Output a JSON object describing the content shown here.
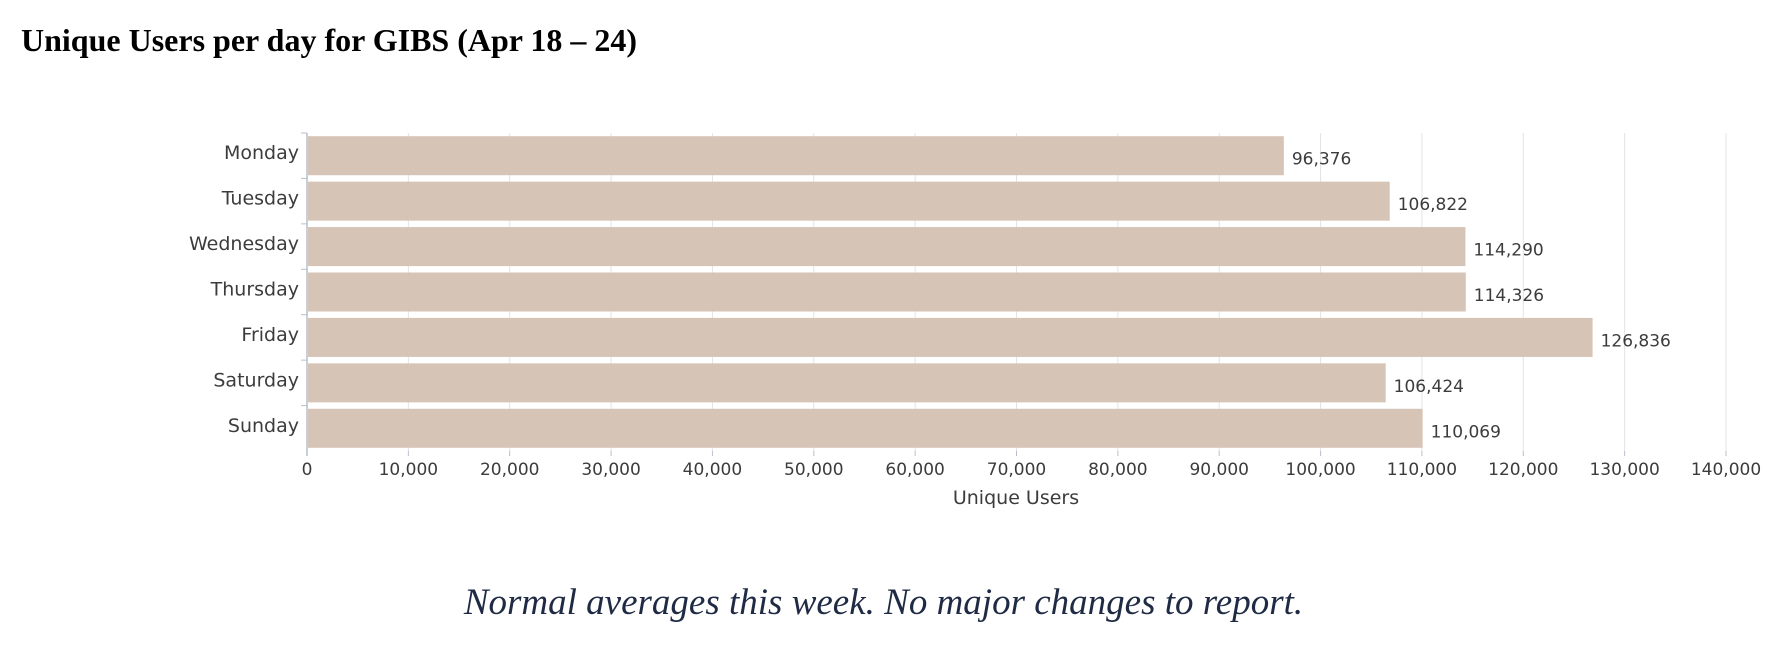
{
  "page": {
    "title": "Unique Users per day for GIBS (Apr 18 – 24)",
    "commentary": "Normal averages this week.  No major changes to report."
  },
  "chart_data": {
    "type": "bar",
    "orientation": "horizontal",
    "title": "",
    "categories": [
      "Monday",
      "Tuesday",
      "Wednesday",
      "Thursday",
      "Friday",
      "Saturday",
      "Sunday"
    ],
    "values": [
      96376,
      106822,
      114290,
      114326,
      126836,
      106424,
      110069
    ],
    "value_labels": [
      "96,376",
      "106,822",
      "114,290",
      "114,326",
      "126,836",
      "106,424",
      "110,069"
    ],
    "xlabel": "Unique Users",
    "ylabel": "",
    "xlim": [
      0,
      140000
    ],
    "x_ticks": [
      0,
      10000,
      20000,
      30000,
      40000,
      50000,
      60000,
      70000,
      80000,
      90000,
      100000,
      110000,
      120000,
      130000,
      140000
    ],
    "x_tick_labels": [
      "0",
      "10,000",
      "20,000",
      "30,000",
      "40,000",
      "50,000",
      "60,000",
      "70,000",
      "80,000",
      "90,000",
      "100,000",
      "110,000",
      "120,000",
      "130,000",
      "140,000"
    ],
    "grid": true,
    "legend": "none",
    "colors": {
      "bar": "#d6c4b6",
      "grid": "#e3e3e3",
      "axis": "#b9bfca",
      "text": "#3c3c3c"
    }
  }
}
